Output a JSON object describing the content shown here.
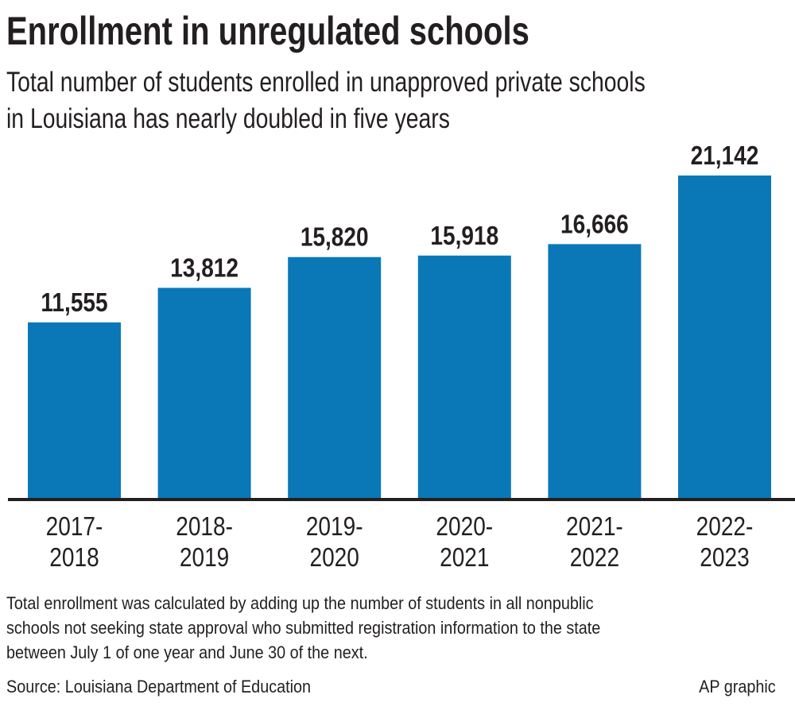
{
  "title": "Enrollment in unregulated schools",
  "subtitle_lines": [
    "Total number of students enrolled in unapproved private schools",
    "in Louisiana has nearly doubled in five years"
  ],
  "note_lines": [
    "Total enrollment was calculated by adding up the number of students in all nonpublic",
    "schools not seeking state approval who submitted registration information to the state",
    "between July 1 of one year and June 30 of the next."
  ],
  "source": "Source: Louisiana Department of Education",
  "credit": "AP graphic",
  "colors": {
    "bar": "#0a78b6",
    "axis": "#231f20",
    "text": "#231f20"
  },
  "chart_data": {
    "type": "bar",
    "title": "Enrollment in unregulated schools",
    "categories": [
      [
        "2017-",
        "2018"
      ],
      [
        "2018-",
        "2019"
      ],
      [
        "2019-",
        "2020"
      ],
      [
        "2020-",
        "2021"
      ],
      [
        "2021-",
        "2022"
      ],
      [
        "2022-",
        "2023"
      ]
    ],
    "values": [
      11555,
      13812,
      15820,
      15918,
      16666,
      21142
    ],
    "labels": [
      "11,555",
      "13,812",
      "15,820",
      "15,918",
      "16,666",
      "21,142"
    ],
    "xlabel": "",
    "ylabel": "",
    "ylim": [
      0,
      21142
    ],
    "grid": false,
    "legend": "none"
  }
}
